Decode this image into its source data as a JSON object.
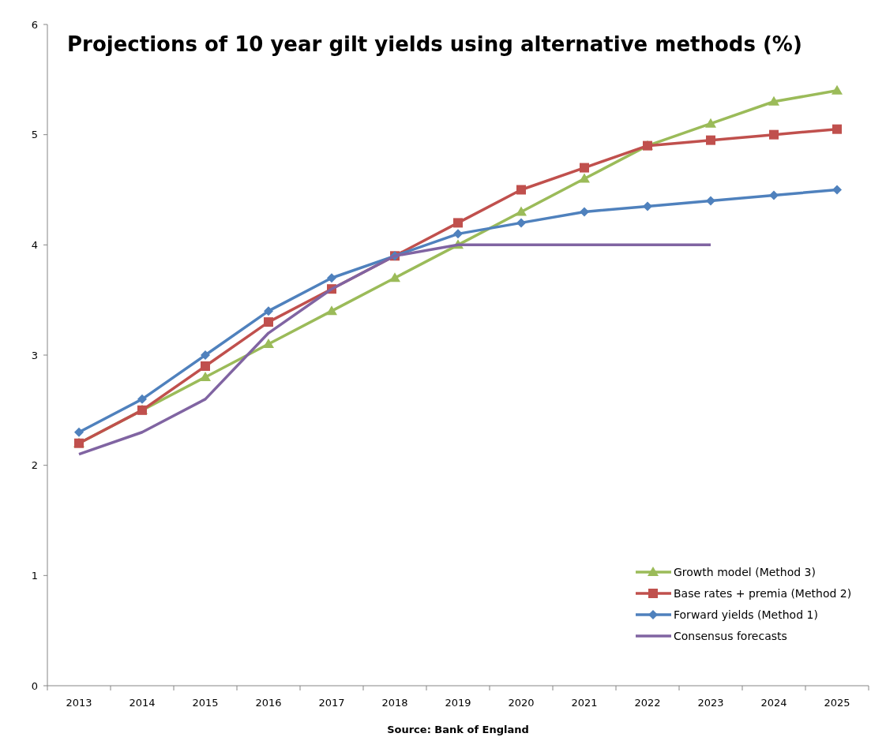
{
  "chart_data": {
    "type": "line",
    "title": "Projections of 10 year gilt yields using alternative methods (%)",
    "categories": [
      "2013",
      "2014",
      "2015",
      "2016",
      "2017",
      "2018",
      "2019",
      "2020",
      "2021",
      "2022",
      "2023",
      "2024",
      "2025"
    ],
    "series": [
      {
        "name": "Growth model (Method 3)",
        "color": "#9bbb59",
        "marker": "triangle",
        "values": [
          2.2,
          2.5,
          2.8,
          3.1,
          3.4,
          3.7,
          4.0,
          4.3,
          4.6,
          4.9,
          5.1,
          5.3,
          5.4
        ]
      },
      {
        "name": "Base rates + premia (Method 2)",
        "color": "#c0504d",
        "marker": "square",
        "values": [
          2.2,
          2.5,
          2.9,
          3.3,
          3.6,
          3.9,
          4.2,
          4.5,
          4.7,
          4.9,
          4.95,
          5.0,
          5.05
        ]
      },
      {
        "name": "Forward yields (Method 1)",
        "color": "#4f81bd",
        "marker": "diamond",
        "values": [
          2.3,
          2.6,
          3.0,
          3.4,
          3.7,
          3.9,
          4.1,
          4.2,
          4.3,
          4.35,
          4.4,
          4.45,
          4.5
        ]
      },
      {
        "name": "Consensus forecasts",
        "color": "#8064a2",
        "marker": "none",
        "values": [
          2.1,
          2.3,
          2.6,
          3.2,
          3.6,
          3.9,
          4.0,
          4.0,
          4.0,
          4.0,
          4.0,
          null,
          null
        ]
      }
    ],
    "ylim": [
      0,
      6
    ],
    "yticks": [
      0,
      1,
      2,
      3,
      4,
      5,
      6
    ],
    "grid": false,
    "legend": "bottom right",
    "annotations": [
      "Source: Bank of England"
    ]
  }
}
